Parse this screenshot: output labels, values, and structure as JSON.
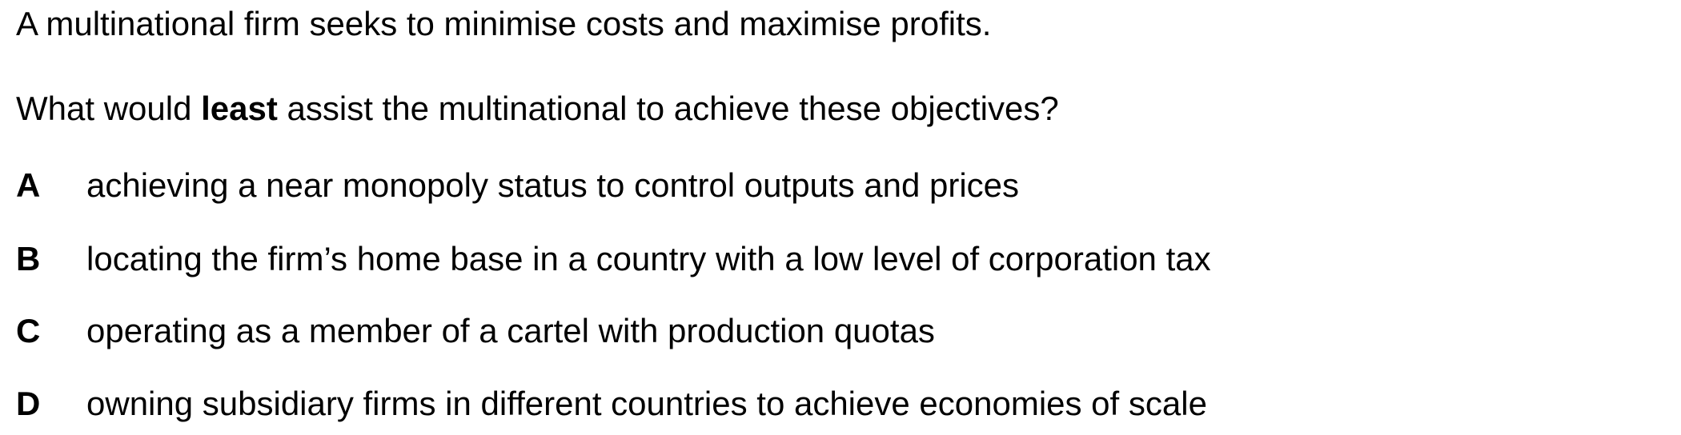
{
  "question": {
    "stem": "A multinational firm seeks to minimise costs and maximise profits.",
    "prompt_before": "What would ",
    "prompt_emphasis": "least",
    "prompt_after": " assist the multinational to achieve these objectives?"
  },
  "options": [
    {
      "letter": "A",
      "text": "achieving a near monopoly status to control outputs and prices"
    },
    {
      "letter": "B",
      "text": "locating the firm’s home base in a country with a low level of corporation tax"
    },
    {
      "letter": "C",
      "text": "operating as a member of a cartel with production quotas"
    },
    {
      "letter": "D",
      "text": "owning subsidiary firms in different countries to achieve economies of scale"
    }
  ]
}
